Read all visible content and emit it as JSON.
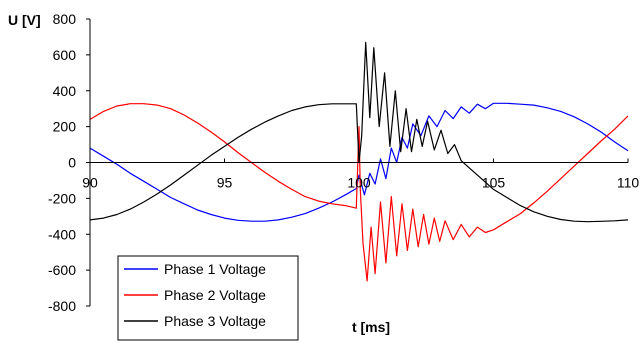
{
  "chart_data": {
    "type": "line",
    "title": "",
    "xlabel": "t [ms]",
    "ylabel": "U  [V]",
    "xlim": [
      90,
      110
    ],
    "ylim": [
      -800,
      800
    ],
    "x_ticks": [
      90,
      95,
      100,
      105,
      110
    ],
    "y_ticks": [
      800,
      600,
      400,
      200,
      0,
      -200,
      -400,
      -600,
      -800
    ],
    "grid": false,
    "legend_position": "bottom-left",
    "series": [
      {
        "name": "Phase 1 Voltage",
        "color": "#0000ff",
        "points": [
          [
            90,
            80
          ],
          [
            90.5,
            35
          ],
          [
            91,
            -10
          ],
          [
            91.5,
            -60
          ],
          [
            92,
            -105
          ],
          [
            92.5,
            -150
          ],
          [
            93,
            -195
          ],
          [
            93.5,
            -230
          ],
          [
            94,
            -265
          ],
          [
            94.5,
            -290
          ],
          [
            95,
            -310
          ],
          [
            95.5,
            -322
          ],
          [
            96,
            -327
          ],
          [
            96.5,
            -327
          ],
          [
            97,
            -320
          ],
          [
            97.5,
            -305
          ],
          [
            98,
            -285
          ],
          [
            98.5,
            -255
          ],
          [
            99,
            -220
          ],
          [
            99.5,
            -180
          ],
          [
            99.9,
            -145
          ],
          [
            100.0,
            -70
          ],
          [
            100.2,
            -180
          ],
          [
            100.4,
            -60
          ],
          [
            100.6,
            -120
          ],
          [
            100.8,
            20
          ],
          [
            101.0,
            -90
          ],
          [
            101.2,
            80
          ],
          [
            101.4,
            0
          ],
          [
            101.6,
            140
          ],
          [
            101.8,
            80
          ],
          [
            102.0,
            215
          ],
          [
            102.3,
            150
          ],
          [
            102.6,
            260
          ],
          [
            102.9,
            200
          ],
          [
            103.2,
            290
          ],
          [
            103.5,
            245
          ],
          [
            103.8,
            310
          ],
          [
            104.1,
            275
          ],
          [
            104.4,
            325
          ],
          [
            104.7,
            300
          ],
          [
            105.0,
            330
          ],
          [
            105.5,
            330
          ],
          [
            106,
            325
          ],
          [
            106.5,
            320
          ],
          [
            107,
            305
          ],
          [
            107.5,
            285
          ],
          [
            108,
            255
          ],
          [
            108.5,
            215
          ],
          [
            109,
            170
          ],
          [
            109.5,
            115
          ],
          [
            110,
            65
          ]
        ]
      },
      {
        "name": "Phase 2 Voltage",
        "color": "#ff0000",
        "points": [
          [
            90,
            240
          ],
          [
            90.5,
            285
          ],
          [
            91,
            315
          ],
          [
            91.5,
            328
          ],
          [
            92,
            328
          ],
          [
            92.5,
            320
          ],
          [
            93,
            300
          ],
          [
            93.5,
            265
          ],
          [
            94,
            220
          ],
          [
            94.5,
            170
          ],
          [
            95,
            115
          ],
          [
            95.5,
            55
          ],
          [
            96,
            0
          ],
          [
            96.5,
            -55
          ],
          [
            97,
            -105
          ],
          [
            97.5,
            -150
          ],
          [
            98,
            -190
          ],
          [
            98.5,
            -215
          ],
          [
            99,
            -230
          ],
          [
            99.5,
            -240
          ],
          [
            99.9,
            -255
          ],
          [
            100.0,
            200
          ],
          [
            100.05,
            -150
          ],
          [
            100.15,
            -450
          ],
          [
            100.3,
            -660
          ],
          [
            100.45,
            -360
          ],
          [
            100.6,
            -620
          ],
          [
            100.8,
            -220
          ],
          [
            101.0,
            -560
          ],
          [
            101.2,
            -190
          ],
          [
            101.4,
            -520
          ],
          [
            101.6,
            -230
          ],
          [
            101.8,
            -490
          ],
          [
            102.0,
            -260
          ],
          [
            102.2,
            -470
          ],
          [
            102.4,
            -290
          ],
          [
            102.6,
            -455
          ],
          [
            102.8,
            -310
          ],
          [
            103.0,
            -440
          ],
          [
            103.2,
            -325
          ],
          [
            103.5,
            -430
          ],
          [
            103.8,
            -345
          ],
          [
            104.1,
            -415
          ],
          [
            104.4,
            -360
          ],
          [
            104.7,
            -390
          ],
          [
            105.0,
            -375
          ],
          [
            105.5,
            -330
          ],
          [
            106,
            -285
          ],
          [
            106.5,
            -225
          ],
          [
            107,
            -160
          ],
          [
            107.5,
            -90
          ],
          [
            108,
            -20
          ],
          [
            108.5,
            50
          ],
          [
            109,
            120
          ],
          [
            109.5,
            185
          ],
          [
            110,
            260
          ]
        ]
      },
      {
        "name": "Phase 3 Voltage",
        "color": "#000000",
        "points": [
          [
            90,
            -320
          ],
          [
            90.5,
            -310
          ],
          [
            91,
            -290
          ],
          [
            91.5,
            -260
          ],
          [
            92,
            -220
          ],
          [
            92.5,
            -175
          ],
          [
            93,
            -125
          ],
          [
            93.5,
            -70
          ],
          [
            94,
            -15
          ],
          [
            94.5,
            40
          ],
          [
            95,
            90
          ],
          [
            95.5,
            140
          ],
          [
            96,
            185
          ],
          [
            96.5,
            225
          ],
          [
            97,
            260
          ],
          [
            97.5,
            290
          ],
          [
            98,
            310
          ],
          [
            98.5,
            322
          ],
          [
            99,
            327
          ],
          [
            99.5,
            327
          ],
          [
            99.9,
            327
          ],
          [
            100.0,
            0
          ],
          [
            100.1,
            150
          ],
          [
            100.25,
            670
          ],
          [
            100.4,
            250
          ],
          [
            100.55,
            640
          ],
          [
            100.75,
            200
          ],
          [
            100.95,
            500
          ],
          [
            101.15,
            90
          ],
          [
            101.35,
            400
          ],
          [
            101.55,
            60
          ],
          [
            101.75,
            300
          ],
          [
            101.95,
            60
          ],
          [
            102.15,
            240
          ],
          [
            102.35,
            90
          ],
          [
            102.55,
            230
          ],
          [
            102.8,
            70
          ],
          [
            103.05,
            180
          ],
          [
            103.3,
            50
          ],
          [
            103.55,
            100
          ],
          [
            103.8,
            10
          ],
          [
            104.1,
            -30
          ],
          [
            104.4,
            -70
          ],
          [
            104.7,
            -110
          ],
          [
            105,
            -150
          ],
          [
            105.5,
            -195
          ],
          [
            106,
            -240
          ],
          [
            106.5,
            -275
          ],
          [
            107,
            -300
          ],
          [
            107.5,
            -318
          ],
          [
            108,
            -327
          ],
          [
            108.5,
            -330
          ],
          [
            109,
            -328
          ],
          [
            109.5,
            -325
          ],
          [
            110,
            -320
          ]
        ]
      }
    ]
  }
}
